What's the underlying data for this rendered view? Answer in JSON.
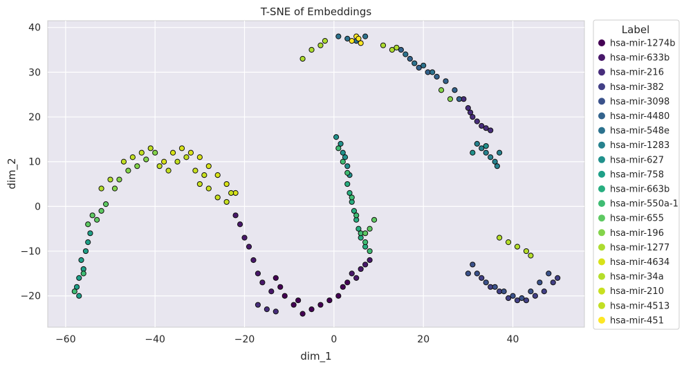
{
  "chart_data": {
    "type": "scatter",
    "title": "T-SNE of Embeddings",
    "xlabel": "dim_1",
    "ylabel": "dim_2",
    "xlim": [
      -64,
      56
    ],
    "ylim": [
      -27,
      41.5
    ],
    "xticks": [
      -60,
      -40,
      -20,
      0,
      20,
      40
    ],
    "yticks": [
      -20,
      -10,
      0,
      10,
      20,
      30,
      40
    ],
    "grid": true,
    "plot_background": "#e8e6ef",
    "marker_edge": "#111111",
    "legend": {
      "title": "Label",
      "placement": "outside-right"
    },
    "series": [
      {
        "name": "hsa-mir-1274b",
        "color": "#440154",
        "points": [
          [
            -13,
            -16
          ],
          [
            -11,
            -20
          ],
          [
            -9,
            -22
          ],
          [
            -7,
            -24
          ],
          [
            -5,
            -23
          ],
          [
            -3,
            -22
          ],
          [
            -1,
            -21
          ],
          [
            1,
            -20
          ],
          [
            2,
            -18
          ],
          [
            3,
            -17
          ],
          [
            -12,
            -18
          ],
          [
            -8,
            -21
          ]
        ]
      },
      {
        "name": "hsa-mir-633b",
        "color": "#48186a",
        "points": [
          [
            -22,
            -2
          ],
          [
            -21,
            -4
          ],
          [
            -20,
            -7
          ],
          [
            -19,
            -9
          ],
          [
            -18,
            -12
          ],
          [
            -17,
            -15
          ],
          [
            -16,
            -17
          ],
          [
            -14,
            -19
          ],
          [
            4,
            -15
          ],
          [
            6,
            -14
          ],
          [
            7,
            -13
          ],
          [
            8,
            -12
          ],
          [
            5,
            -16
          ]
        ]
      },
      {
        "name": "hsa-mir-216",
        "color": "#472d7b",
        "points": [
          [
            29,
            24
          ],
          [
            30,
            22
          ],
          [
            31,
            20
          ],
          [
            32,
            19
          ],
          [
            33,
            18
          ],
          [
            34,
            17.5
          ],
          [
            35,
            17
          ],
          [
            30.5,
            21
          ],
          [
            -17,
            -22
          ],
          [
            -15,
            -23
          ],
          [
            -13,
            -23.5
          ]
        ]
      },
      {
        "name": "hsa-mir-382",
        "color": "#424086",
        "points": [
          [
            37,
            -19
          ],
          [
            39,
            -20.5
          ],
          [
            41,
            -21
          ],
          [
            43,
            -21
          ],
          [
            45,
            -20
          ],
          [
            47,
            -19
          ],
          [
            49,
            -17
          ],
          [
            50,
            -16
          ],
          [
            35,
            -18
          ],
          [
            33,
            -16
          ]
        ]
      },
      {
        "name": "hsa-mir-3098",
        "color": "#3b528b",
        "points": [
          [
            31,
            -13
          ],
          [
            32,
            -15
          ],
          [
            34,
            -17
          ],
          [
            36,
            -18
          ],
          [
            38,
            -19
          ],
          [
            40,
            -20
          ],
          [
            42,
            -20.5
          ],
          [
            44,
            -19
          ],
          [
            46,
            -17
          ],
          [
            48,
            -15
          ],
          [
            30,
            -15
          ]
        ]
      },
      {
        "name": "hsa-mir-4480",
        "color": "#33638d",
        "points": [
          [
            15,
            35
          ],
          [
            17,
            33
          ],
          [
            19,
            31
          ],
          [
            21,
            30
          ],
          [
            23,
            29
          ],
          [
            25,
            28
          ],
          [
            27,
            26
          ],
          [
            28,
            24
          ]
        ]
      },
      {
        "name": "hsa-mir-548e",
        "color": "#2c728e",
        "points": [
          [
            1,
            38
          ],
          [
            3,
            37.5
          ],
          [
            5,
            37
          ],
          [
            7,
            38
          ],
          [
            16,
            34
          ],
          [
            18,
            32
          ],
          [
            20,
            31.5
          ],
          [
            22,
            30
          ]
        ]
      },
      {
        "name": "hsa-mir-1283",
        "color": "#26828e",
        "points": [
          [
            32,
            14
          ],
          [
            33,
            13
          ],
          [
            34,
            12
          ],
          [
            35,
            11
          ],
          [
            36,
            10
          ],
          [
            36.5,
            9
          ],
          [
            37,
            12
          ]
        ]
      },
      {
        "name": "hsa-mir-627",
        "color": "#21918c",
        "points": [
          [
            0.5,
            15.5
          ],
          [
            1.5,
            14
          ],
          [
            2,
            12
          ],
          [
            2.5,
            11
          ],
          [
            3,
            9
          ],
          [
            3.5,
            7
          ],
          [
            31,
            12
          ],
          [
            34,
            13.5
          ]
        ]
      },
      {
        "name": "hsa-mir-758",
        "color": "#1fa088",
        "points": [
          [
            -57,
            -20
          ],
          [
            -57.5,
            -18
          ],
          [
            -57,
            -16
          ],
          [
            -56,
            -14
          ],
          [
            -56.5,
            -12
          ],
          [
            -55.5,
            -10
          ],
          [
            -55,
            -8
          ],
          [
            -54.5,
            -6
          ]
        ]
      },
      {
        "name": "hsa-mir-663b",
        "color": "#28ae80",
        "points": [
          [
            3,
            5
          ],
          [
            3.5,
            3
          ],
          [
            4,
            1
          ],
          [
            4.5,
            -1
          ],
          [
            5,
            -3
          ],
          [
            5.5,
            -5
          ],
          [
            6,
            -7
          ],
          [
            7,
            -9
          ]
        ]
      },
      {
        "name": "hsa-mir-550a-1",
        "color": "#3fbc73",
        "points": [
          [
            1,
            13
          ],
          [
            2,
            10
          ],
          [
            3,
            7.5
          ],
          [
            4,
            2
          ],
          [
            5,
            -2
          ],
          [
            6,
            -6
          ],
          [
            7,
            -8
          ],
          [
            8,
            -10
          ],
          [
            -58,
            -19
          ],
          [
            -56,
            -15
          ]
        ]
      },
      {
        "name": "hsa-mir-655",
        "color": "#5ec962",
        "points": [
          [
            -53,
            -3
          ],
          [
            -52,
            -1
          ],
          [
            -54,
            -2
          ],
          [
            -51,
            0.5
          ],
          [
            -55,
            -4
          ],
          [
            7,
            -6
          ],
          [
            8,
            -5
          ],
          [
            9,
            -3
          ]
        ]
      },
      {
        "name": "hsa-mir-196",
        "color": "#84d44b",
        "points": [
          [
            -49,
            4
          ],
          [
            -48,
            6
          ],
          [
            -46,
            8
          ],
          [
            -44,
            9
          ],
          [
            -42,
            10.5
          ],
          [
            -40,
            12
          ],
          [
            24,
            26
          ],
          [
            26,
            24
          ]
        ]
      },
      {
        "name": "hsa-mir-1277",
        "color": "#addc30",
        "points": [
          [
            -7,
            33
          ],
          [
            -5,
            35
          ],
          [
            -3,
            36
          ],
          [
            11,
            36
          ],
          [
            13,
            35
          ],
          [
            14,
            35.5
          ],
          [
            -2,
            37
          ]
        ]
      },
      {
        "name": "hsa-mir-4634",
        "color": "#d8e219",
        "points": [
          [
            -38,
            10
          ],
          [
            -36,
            12
          ],
          [
            -34,
            13
          ],
          [
            -32,
            12
          ],
          [
            -30,
            11
          ],
          [
            -28,
            9
          ],
          [
            -26,
            7
          ],
          [
            -24,
            5
          ],
          [
            -22,
            3
          ]
        ]
      },
      {
        "name": "hsa-mir-34a",
        "color": "#b5de2b",
        "points": [
          [
            37,
            -7
          ],
          [
            39,
            -8
          ],
          [
            41,
            -9
          ],
          [
            43,
            -10
          ],
          [
            44,
            -11
          ],
          [
            -50,
            6
          ],
          [
            -52,
            4
          ]
        ]
      },
      {
        "name": "hsa-mir-210",
        "color": "#c8e020",
        "points": [
          [
            -30,
            5
          ],
          [
            -28,
            4
          ],
          [
            -26,
            2
          ],
          [
            -24,
            1
          ],
          [
            -23,
            3
          ],
          [
            -29,
            7
          ],
          [
            -31,
            8
          ]
        ]
      },
      {
        "name": "hsa-mir-4513",
        "color": "#c2df23",
        "points": [
          [
            -47,
            10
          ],
          [
            -45,
            11
          ],
          [
            -43,
            12
          ],
          [
            -41,
            13
          ],
          [
            -39,
            9
          ],
          [
            -37,
            8
          ],
          [
            -35,
            10
          ],
          [
            -33,
            11
          ]
        ]
      },
      {
        "name": "hsa-mir-451",
        "color": "#fde725",
        "points": [
          [
            4,
            37
          ],
          [
            5,
            38
          ],
          [
            6,
            36.5
          ],
          [
            5.5,
            37.5
          ]
        ]
      }
    ]
  }
}
